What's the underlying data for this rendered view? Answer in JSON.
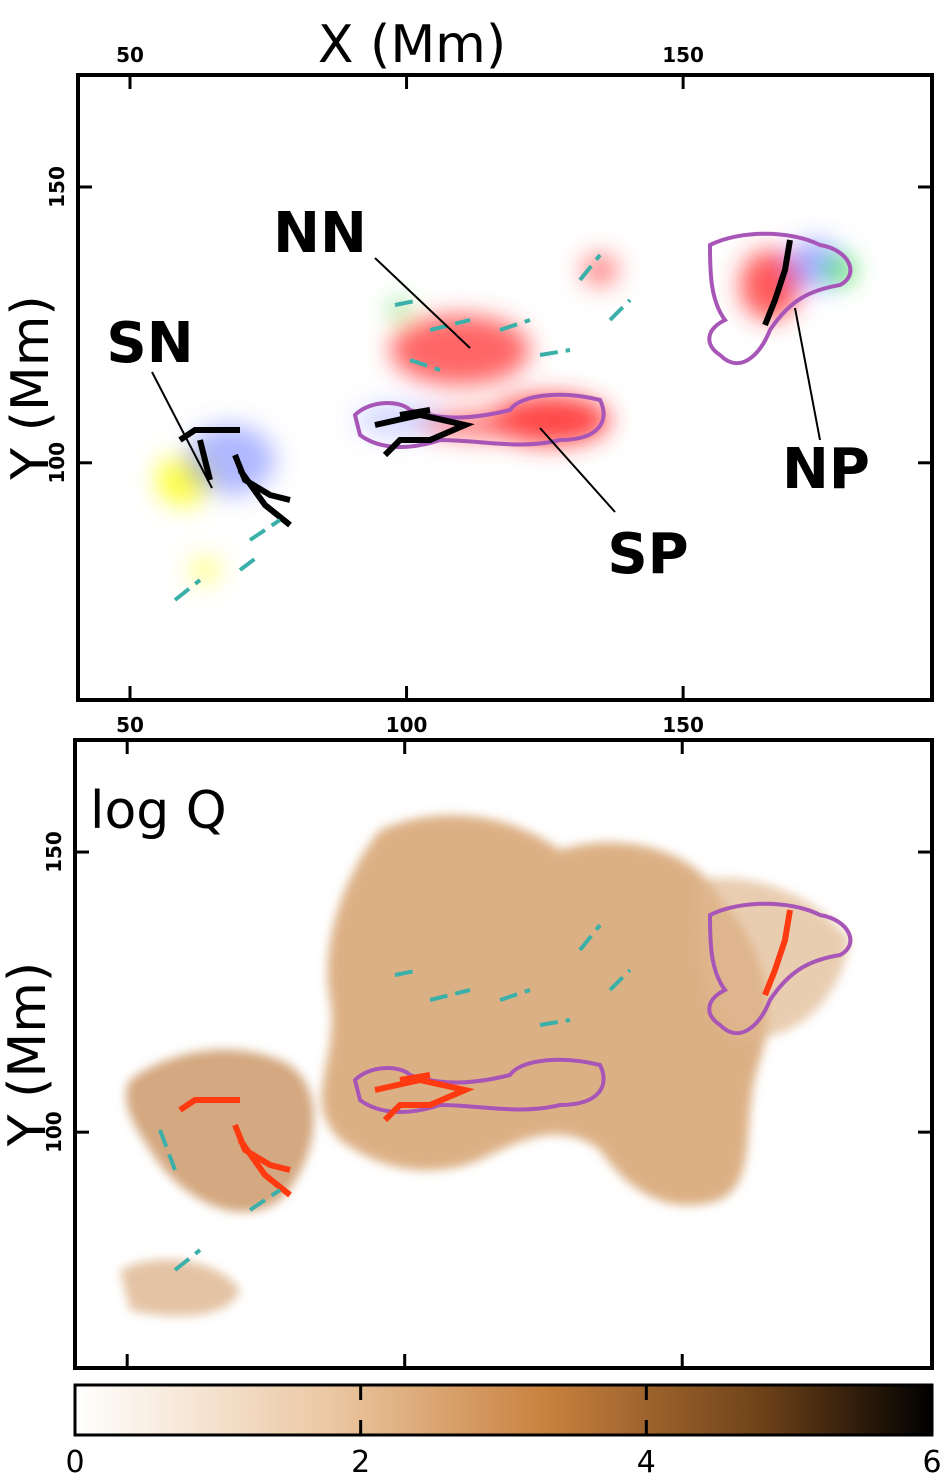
{
  "chart_data": [
    {
      "type": "image",
      "xlabel": "X (Mm)",
      "ylabel": "Y (Mm)",
      "xlim": [
        40.6,
        195
      ],
      "ylim": [
        57,
        170.3
      ],
      "xticks": [
        50,
        100,
        150
      ],
      "top_xticks": [
        50,
        150
      ],
      "yticks": [
        100,
        150
      ],
      "annotations": [
        "NN",
        "SN",
        "NP",
        "SP"
      ]
    },
    {
      "type": "image",
      "ylabel": "Y (Mm)",
      "annotation": "log Q",
      "xlim": [
        40.6,
        195
      ],
      "ylim": [
        57.9,
        170
      ],
      "xticks": [
        50,
        100,
        150
      ],
      "yticks": [
        100,
        150
      ],
      "colorbar": {
        "clim": [
          0,
          6
        ],
        "ticks": [
          0,
          2,
          4,
          6
        ]
      }
    }
  ]
}
